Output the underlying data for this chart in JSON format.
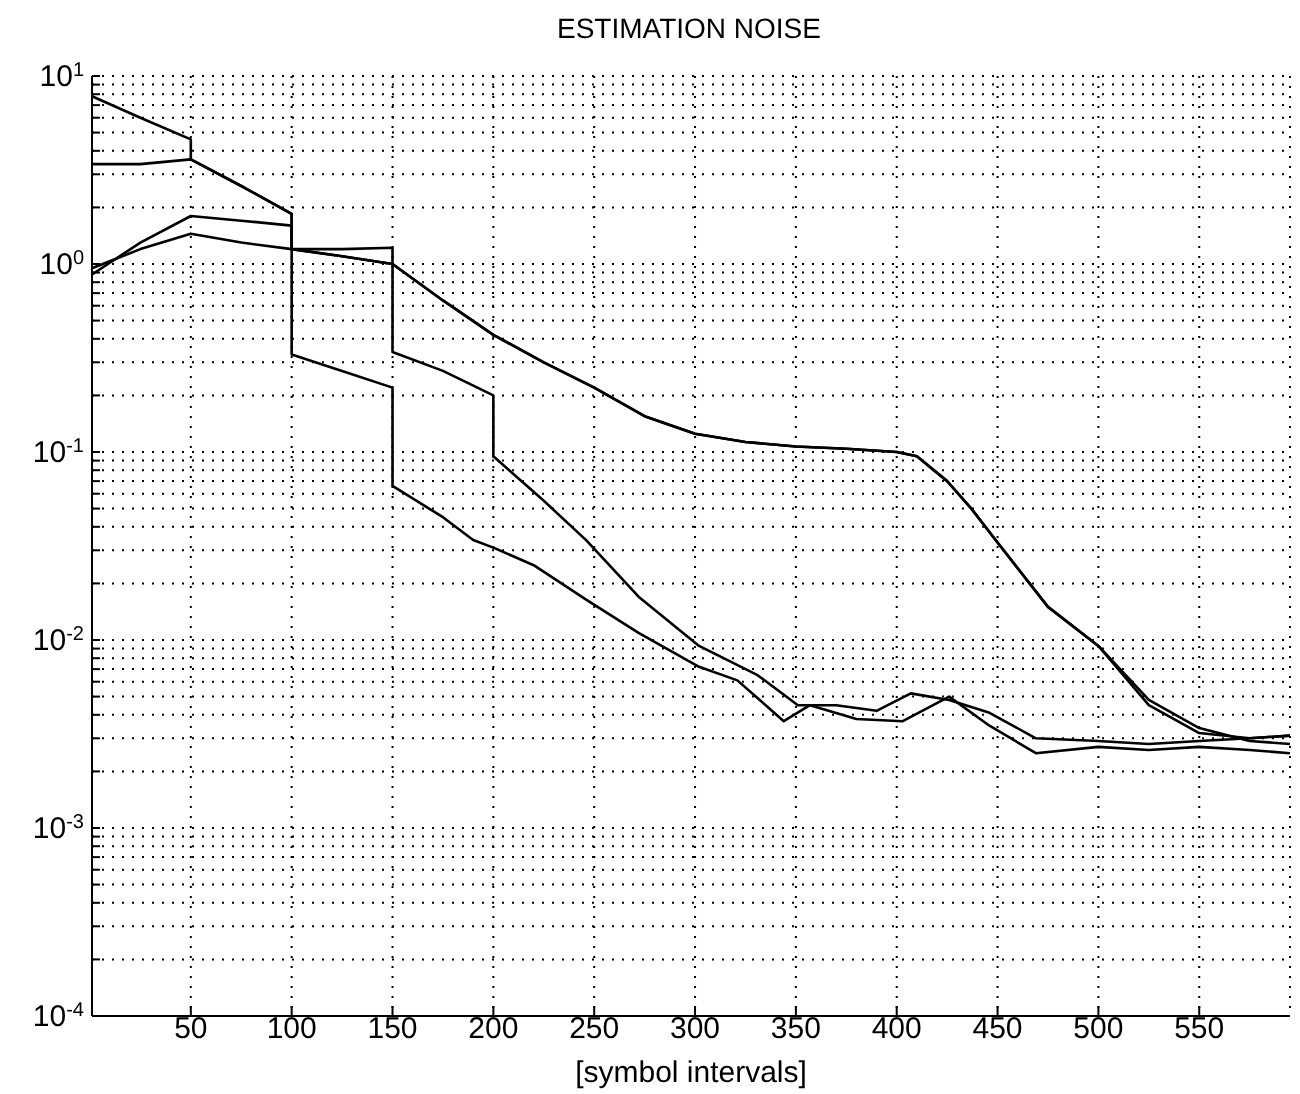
{
  "chart_data": {
    "type": "line",
    "title": "ESTIMATION NOISE",
    "xlabel": "[symbol intervals]",
    "log": "y",
    "grid": true,
    "marker": "none",
    "line_style": "solid",
    "xlim": [
      1,
      595
    ],
    "xticks": [
      50,
      100,
      150,
      200,
      250,
      300,
      350,
      400,
      450,
      500,
      550
    ],
    "ylim": [
      0.0001,
      10
    ],
    "yticks": [
      {
        "value": 0.0001,
        "label": "10$^{-4}$"
      },
      {
        "value": 0.0002,
        "label": null
      },
      {
        "value": 0.0003,
        "label": null
      },
      {
        "value": 0.0004,
        "label": null
      },
      {
        "value": 0.0005,
        "label": null
      },
      {
        "value": 0.0006,
        "label": null
      },
      {
        "value": 0.0007,
        "label": null
      },
      {
        "value": 0.0008,
        "label": null
      },
      {
        "value": 0.0009,
        "label": null
      },
      {
        "value": 0.001,
        "label": "10$^{-3}$"
      },
      {
        "value": 0.002,
        "label": null
      },
      {
        "value": 0.003,
        "label": null
      },
      {
        "value": 0.004,
        "label": null
      },
      {
        "value": 0.005,
        "label": null
      },
      {
        "value": 0.006,
        "label": null
      },
      {
        "value": 0.007,
        "label": null
      },
      {
        "value": 0.008,
        "label": null
      },
      {
        "value": 0.009,
        "label": null
      },
      {
        "value": 0.01,
        "label": "10$^{-2}$"
      },
      {
        "value": 0.02,
        "label": null
      },
      {
        "value": 0.03,
        "label": null
      },
      {
        "value": 0.04,
        "label": null
      },
      {
        "value": 0.05,
        "label": null
      },
      {
        "value": 0.06,
        "label": null
      },
      {
        "value": 0.07,
        "label": null
      },
      {
        "value": 0.08,
        "label": null
      },
      {
        "value": 0.09,
        "label": null
      },
      {
        "value": 0.1,
        "label": "10$^{-1}$"
      },
      {
        "value": 0.2,
        "label": null
      },
      {
        "value": 0.3,
        "label": null
      },
      {
        "value": 0.4,
        "label": null
      },
      {
        "value": 0.5,
        "label": null
      },
      {
        "value": 0.6,
        "label": null
      },
      {
        "value": 0.7,
        "label": null
      },
      {
        "value": 0.8,
        "label": null
      },
      {
        "value": 0.9,
        "label": null
      },
      {
        "value": 1,
        "label": "10$^{0}$"
      },
      {
        "value": 2,
        "label": null
      },
      {
        "value": 3,
        "label": null
      },
      {
        "value": 4,
        "label": null
      },
      {
        "value": 5,
        "label": null
      },
      {
        "value": 6,
        "label": null
      },
      {
        "value": 7,
        "label": null
      },
      {
        "value": 8,
        "label": null
      },
      {
        "value": 9,
        "label": null
      },
      {
        "value": 10,
        "label": "10$^{1}$"
      }
    ],
    "series": [
      {
        "color": "#000000",
        "x": [
          1,
          25,
          50,
          50,
          75,
          100,
          100,
          125,
          150,
          150,
          175,
          190,
          200,
          220,
          246,
          272,
          302,
          321,
          344,
          357,
          380,
          403,
          426,
          446,
          469,
          500,
          525,
          550,
          575,
          595
        ],
        "values": [
          7.8,
          6.0,
          4.6,
          3.6,
          2.6,
          1.85,
          0.33,
          0.27,
          0.22,
          0.066,
          0.045,
          0.034,
          0.031,
          0.025,
          0.0164,
          0.0109,
          0.0072,
          0.0061,
          0.0037,
          0.0045,
          0.0038,
          0.0037,
          0.005,
          0.0035,
          0.0025,
          0.0027,
          0.0026,
          0.0027,
          0.0026,
          0.0025
        ]
      },
      {
        "color": "#000000",
        "x": [
          1,
          25,
          50,
          75,
          100,
          100,
          125,
          150,
          150,
          175,
          200,
          200,
          225,
          246,
          272,
          302,
          331,
          351,
          370,
          390,
          407,
          426,
          446,
          469,
          500,
          525,
          550,
          575,
          595
        ],
        "values": [
          3.4,
          3.4,
          3.6,
          2.6,
          1.85,
          1.2,
          1.2,
          1.22,
          0.34,
          0.27,
          0.2,
          0.095,
          0.055,
          0.034,
          0.017,
          0.0093,
          0.0065,
          0.0045,
          0.0045,
          0.0042,
          0.0052,
          0.0048,
          0.0041,
          0.003,
          0.0029,
          0.0028,
          0.0029,
          0.003,
          0.0031
        ]
      },
      {
        "color": "#000000",
        "x": [
          1,
          25,
          50,
          75,
          100,
          100,
          125,
          150,
          175,
          200,
          225,
          250,
          275,
          300,
          325,
          350,
          375,
          400,
          410,
          425,
          437,
          450,
          475,
          500,
          525,
          550,
          575,
          595
        ],
        "values": [
          0.88,
          1.3,
          1.8,
          1.7,
          1.6,
          1.2,
          1.1,
          1.0,
          0.64,
          0.42,
          0.3,
          0.22,
          0.155,
          0.125,
          0.113,
          0.107,
          0.104,
          0.1,
          0.095,
          0.07,
          0.05,
          0.033,
          0.015,
          0.0093,
          0.0045,
          0.0032,
          0.003,
          0.0031
        ]
      },
      {
        "color": "#000000",
        "x": [
          1,
          25,
          50,
          75,
          100,
          125,
          150,
          175,
          200,
          225,
          250,
          275,
          300,
          325,
          350,
          375,
          400,
          410,
          425,
          437,
          450,
          475,
          500,
          525,
          550,
          575,
          595
        ],
        "values": [
          0.95,
          1.2,
          1.45,
          1.3,
          1.2,
          1.1,
          1.0,
          0.64,
          0.42,
          0.3,
          0.22,
          0.155,
          0.125,
          0.113,
          0.107,
          0.104,
          0.1,
          0.095,
          0.07,
          0.05,
          0.033,
          0.015,
          0.0093,
          0.0048,
          0.0034,
          0.0029,
          0.0028
        ]
      }
    ]
  }
}
